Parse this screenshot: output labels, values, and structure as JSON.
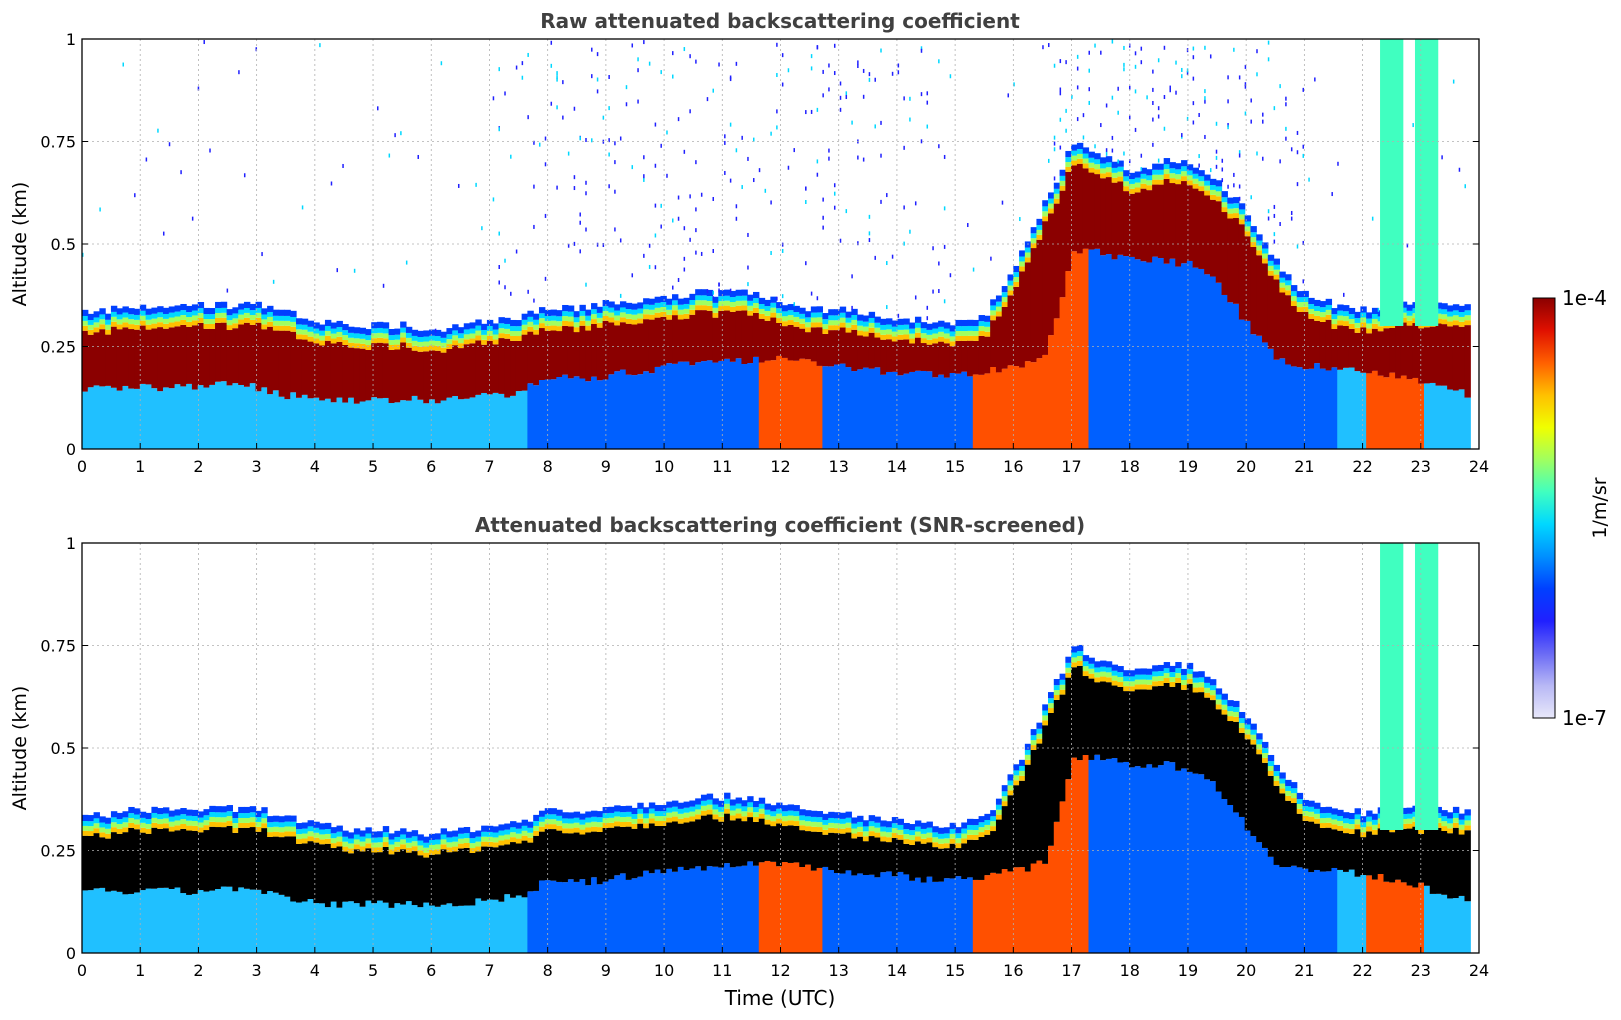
{
  "chart_data": [
    {
      "type": "heatmap",
      "title": "Raw attenuated backscattering coefficient",
      "xlabel": "",
      "ylabel": "Altitude (km)",
      "xlim": [
        0,
        24
      ],
      "ylim": [
        0,
        1
      ],
      "xticks": [
        "0",
        "1",
        "2",
        "3",
        "4",
        "5",
        "6",
        "7",
        "8",
        "9",
        "10",
        "11",
        "12",
        "13",
        "14",
        "15",
        "16",
        "17",
        "18",
        "19",
        "20",
        "21",
        "22",
        "23",
        "24"
      ],
      "yticks": [
        "0",
        "0.25",
        "0.5",
        "0.75",
        "1"
      ],
      "grid": true,
      "data_end_hour": 23.85,
      "hours": [
        0.0,
        0.5,
        1.0,
        1.5,
        2.0,
        2.5,
        3.0,
        3.5,
        4.0,
        4.5,
        5.0,
        5.5,
        6.0,
        6.5,
        7.0,
        7.5,
        8.0,
        8.5,
        9.0,
        9.5,
        10.0,
        10.5,
        11.0,
        11.5,
        12.0,
        12.5,
        13.0,
        13.5,
        14.0,
        14.5,
        15.0,
        15.5,
        16.0,
        16.5,
        17.0,
        17.5,
        18.0,
        18.5,
        19.0,
        19.5,
        20.0,
        20.5,
        21.0,
        21.5,
        22.0,
        22.5,
        23.0,
        23.5,
        23.85
      ],
      "layer_base_km": [
        0.15,
        0.15,
        0.15,
        0.15,
        0.15,
        0.16,
        0.15,
        0.13,
        0.12,
        0.12,
        0.12,
        0.12,
        0.12,
        0.12,
        0.13,
        0.14,
        0.18,
        0.17,
        0.18,
        0.19,
        0.2,
        0.21,
        0.21,
        0.22,
        0.22,
        0.21,
        0.2,
        0.19,
        0.19,
        0.18,
        0.18,
        0.19,
        0.2,
        0.22,
        0.48,
        0.48,
        0.46,
        0.46,
        0.45,
        0.4,
        0.3,
        0.22,
        0.2,
        0.2,
        0.19,
        0.18,
        0.16,
        0.14,
        0.13
      ],
      "layer_top_km": [
        0.28,
        0.29,
        0.3,
        0.3,
        0.3,
        0.3,
        0.3,
        0.28,
        0.26,
        0.25,
        0.25,
        0.25,
        0.24,
        0.25,
        0.26,
        0.27,
        0.3,
        0.29,
        0.31,
        0.31,
        0.32,
        0.33,
        0.33,
        0.33,
        0.31,
        0.29,
        0.29,
        0.28,
        0.27,
        0.26,
        0.26,
        0.28,
        0.4,
        0.55,
        0.7,
        0.66,
        0.63,
        0.65,
        0.65,
        0.6,
        0.52,
        0.4,
        0.32,
        0.3,
        0.29,
        0.3,
        0.3,
        0.3,
        0.29
      ]
    },
    {
      "type": "heatmap",
      "title": "Attenuated backscattering coefficient (SNR-screened)",
      "xlabel": "Time (UTC)",
      "ylabel": "Altitude (km)",
      "xlim": [
        0,
        24
      ],
      "ylim": [
        0,
        1
      ],
      "xticks": [
        "0",
        "1",
        "2",
        "3",
        "4",
        "5",
        "6",
        "7",
        "8",
        "9",
        "10",
        "11",
        "12",
        "13",
        "14",
        "15",
        "16",
        "17",
        "18",
        "19",
        "20",
        "21",
        "22",
        "23",
        "24"
      ],
      "yticks": [
        "0",
        "0.25",
        "0.5",
        "0.75",
        "1"
      ],
      "grid": true
    }
  ],
  "colorbar": {
    "label": "1/m/sr",
    "max_label": "1e-4",
    "min_label": "1e-7",
    "colormap": "jet",
    "colors": [
      "#e8e8fa",
      "#b8b8f5",
      "#6a6af5",
      "#2020ff",
      "#0040ff",
      "#0090ff",
      "#00d8ff",
      "#40ffc0",
      "#a0ff60",
      "#f0ff00",
      "#ffc000",
      "#ff6000",
      "#e01000",
      "#8b0000"
    ]
  }
}
